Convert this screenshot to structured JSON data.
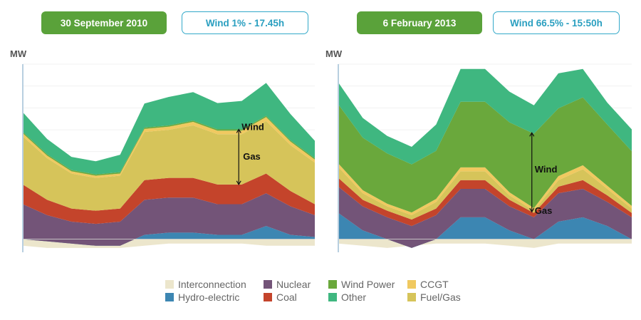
{
  "colors": {
    "interconnection": "#ece6cc",
    "hydro": "#3c86b2",
    "nuclear": "#735478",
    "coal": "#c4442b",
    "fuel_gas": "#d6c45a",
    "ccgt": "#f0c960",
    "other": "#3fb780",
    "wind": "#6aa83c"
  },
  "panels": [
    {
      "date": "30 September 2010",
      "wind_info": "Wind 1% - 17.45h",
      "unit": "MW",
      "annotations": {
        "wind": "Wind",
        "gas": "Gas"
      }
    },
    {
      "date": "6 February 2013",
      "wind_info": "Wind 66.5% - 15:50h",
      "unit": "MW",
      "annotations": {
        "wind": "Wind",
        "gas": "Gas"
      }
    }
  ],
  "legend": [
    {
      "label": "Interconnection",
      "color": "#ece6cc"
    },
    {
      "label": "Hydro-electric",
      "color": "#3c86b2"
    },
    {
      "label": "Nuclear",
      "color": "#735478"
    },
    {
      "label": "Coal",
      "color": "#c4442b"
    },
    {
      "label": "Wind Power",
      "color": "#6aa83c"
    },
    {
      "label": "Other",
      "color": "#3fb780"
    },
    {
      "label": "CCGT",
      "color": "#f0c960"
    },
    {
      "label": "Fuel/Gas",
      "color": "#d6c45a"
    }
  ],
  "chart_data": [
    {
      "type": "area",
      "title": "30 September 2010",
      "ylabel": "MW",
      "ylim": [
        -3000,
        40000
      ],
      "x": [
        0,
        2,
        4,
        6,
        8,
        10,
        12,
        14,
        16,
        18,
        20,
        22,
        24
      ],
      "stack_order": [
        "Hydro-electric",
        "Nuclear",
        "Coal",
        "Fuel/Gas",
        "CCGT",
        "Wind Power",
        "Other"
      ],
      "series": [
        {
          "name": "Interconnection",
          "values": [
            -1500,
            -2000,
            -2000,
            -2000,
            -2000,
            -1500,
            -1000,
            -1000,
            -1000,
            -1000,
            -1500,
            -1500,
            -1500
          ]
        },
        {
          "name": "Hydro-electric",
          "values": [
            0,
            -500,
            -1000,
            -1500,
            -1500,
            1000,
            1500,
            1500,
            1000,
            1000,
            3000,
            1000,
            500
          ]
        },
        {
          "name": "Nuclear",
          "values": [
            8000,
            6000,
            5000,
            5000,
            5500,
            8000,
            8000,
            8000,
            7000,
            7000,
            7500,
            6500,
            5000
          ]
        },
        {
          "name": "Coal",
          "values": [
            4500,
            3500,
            3000,
            3000,
            3000,
            4500,
            4500,
            4500,
            4500,
            4500,
            4500,
            3500,
            2500
          ]
        },
        {
          "name": "Fuel/Gas",
          "values": [
            11000,
            9500,
            8000,
            7500,
            7500,
            11000,
            11000,
            12000,
            11500,
            11500,
            12000,
            10500,
            9500
          ]
        },
        {
          "name": "CCGT",
          "values": [
            700,
            600,
            500,
            500,
            500,
            700,
            700,
            800,
            800,
            800,
            900,
            800,
            700
          ]
        },
        {
          "name": "Wind Power",
          "values": [
            300,
            300,
            300,
            300,
            300,
            300,
            300,
            300,
            300,
            300,
            300,
            300,
            300
          ]
        },
        {
          "name": "Other",
          "values": [
            4500,
            3500,
            3000,
            3000,
            4000,
            5500,
            6500,
            6500,
            6000,
            6500,
            7500,
            6000,
            4000
          ]
        }
      ]
    },
    {
      "type": "area",
      "title": "6 February 2013",
      "ylabel": "MW",
      "ylim": [
        -3000,
        40000
      ],
      "x": [
        0,
        2,
        4,
        6,
        8,
        10,
        12,
        14,
        16,
        18,
        20,
        22,
        24
      ],
      "stack_order": [
        "Hydro-electric",
        "Nuclear",
        "Coal",
        "Fuel/Gas",
        "CCGT",
        "Wind Power",
        "Other"
      ],
      "series": [
        {
          "name": "Interconnection",
          "values": [
            -1000,
            -1500,
            -2000,
            -1500,
            -1000,
            -1000,
            -1000,
            -1500,
            -2000,
            -1000,
            -1000,
            -1000,
            -1000
          ]
        },
        {
          "name": "Hydro-electric",
          "values": [
            6000,
            2000,
            0,
            -2000,
            0,
            5000,
            5000,
            2000,
            0,
            4000,
            5000,
            3000,
            0
          ]
        },
        {
          "name": "Nuclear",
          "values": [
            6000,
            5500,
            5000,
            5000,
            5500,
            6500,
            6500,
            5500,
            5000,
            6500,
            6500,
            5500,
            5000
          ]
        },
        {
          "name": "Coal",
          "values": [
            2000,
            1500,
            1500,
            1500,
            1500,
            2000,
            2000,
            1500,
            1000,
            1500,
            2000,
            1500,
            1000
          ]
        },
        {
          "name": "Fuel/Gas",
          "values": [
            2500,
            1500,
            1000,
            1000,
            1500,
            2000,
            2000,
            1000,
            500,
            1500,
            2500,
            1500,
            1000
          ]
        },
        {
          "name": "CCGT",
          "values": [
            800,
            700,
            600,
            600,
            700,
            900,
            900,
            700,
            600,
            900,
            900,
            700,
            600
          ]
        },
        {
          "name": "Wind Power",
          "values": [
            13500,
            12000,
            11500,
            11000,
            11000,
            15000,
            15000,
            16000,
            17000,
            15500,
            15500,
            14000,
            12500
          ]
        },
        {
          "name": "Other",
          "values": [
            5000,
            4500,
            4000,
            4000,
            6000,
            7500,
            7500,
            7000,
            6500,
            8000,
            6500,
            5000,
            5000
          ]
        }
      ]
    }
  ]
}
